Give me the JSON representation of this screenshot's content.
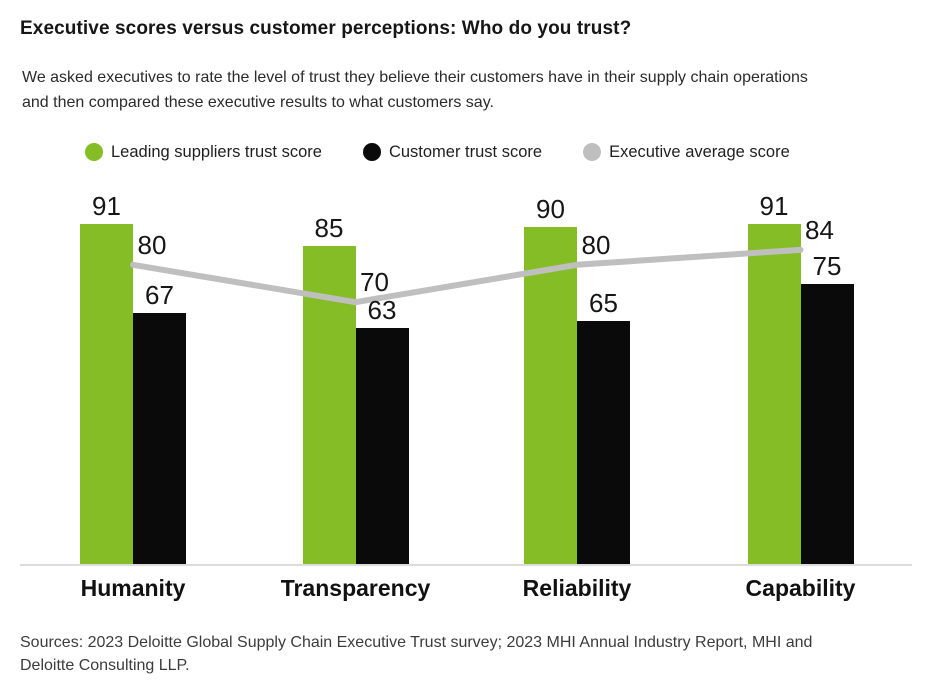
{
  "title": "Executive scores versus customer perceptions: Who do you trust?",
  "subtitle": "We asked executives to rate the level of trust they believe their customers have in their supply chain operations and then compared these executive results to what customers say.",
  "legend": [
    {
      "label": "Leading suppliers trust score",
      "color": "#84bd25",
      "marker": "circle"
    },
    {
      "label": "Customer trust score",
      "color": "#0a0a0a",
      "marker": "circle"
    },
    {
      "label": "Executive average score",
      "color": "#bfbfbf",
      "marker": "circle"
    }
  ],
  "chart_data": {
    "type": "bar",
    "subtype": "grouped-bars-with-line-overlay",
    "categories": [
      "Humanity",
      "Transparency",
      "Reliability",
      "Capability"
    ],
    "series": [
      {
        "name": "Leading suppliers trust score",
        "type": "bar",
        "color": "#84bd25",
        "values": [
          91,
          85,
          90,
          91
        ]
      },
      {
        "name": "Customer trust score",
        "type": "bar",
        "color": "#0a0a0a",
        "values": [
          67,
          63,
          65,
          75
        ]
      },
      {
        "name": "Executive average score",
        "type": "line",
        "color": "#bfbfbf",
        "values": [
          80,
          70,
          80,
          84
        ]
      }
    ],
    "title": "Executive scores versus customer perceptions: Who do you trust?",
    "xlabel": "",
    "ylabel": "",
    "ylim": [
      0,
      100
    ],
    "grid": false,
    "axes_visible": false,
    "value_labels": true,
    "legend_position": "top",
    "baseline_color": "#dcdcdc"
  },
  "sources": "Sources: 2023 Deloitte Global Supply Chain Executive Trust survey; 2023 MHI Annual Industry Report, MHI and Deloitte Consulting LLP."
}
